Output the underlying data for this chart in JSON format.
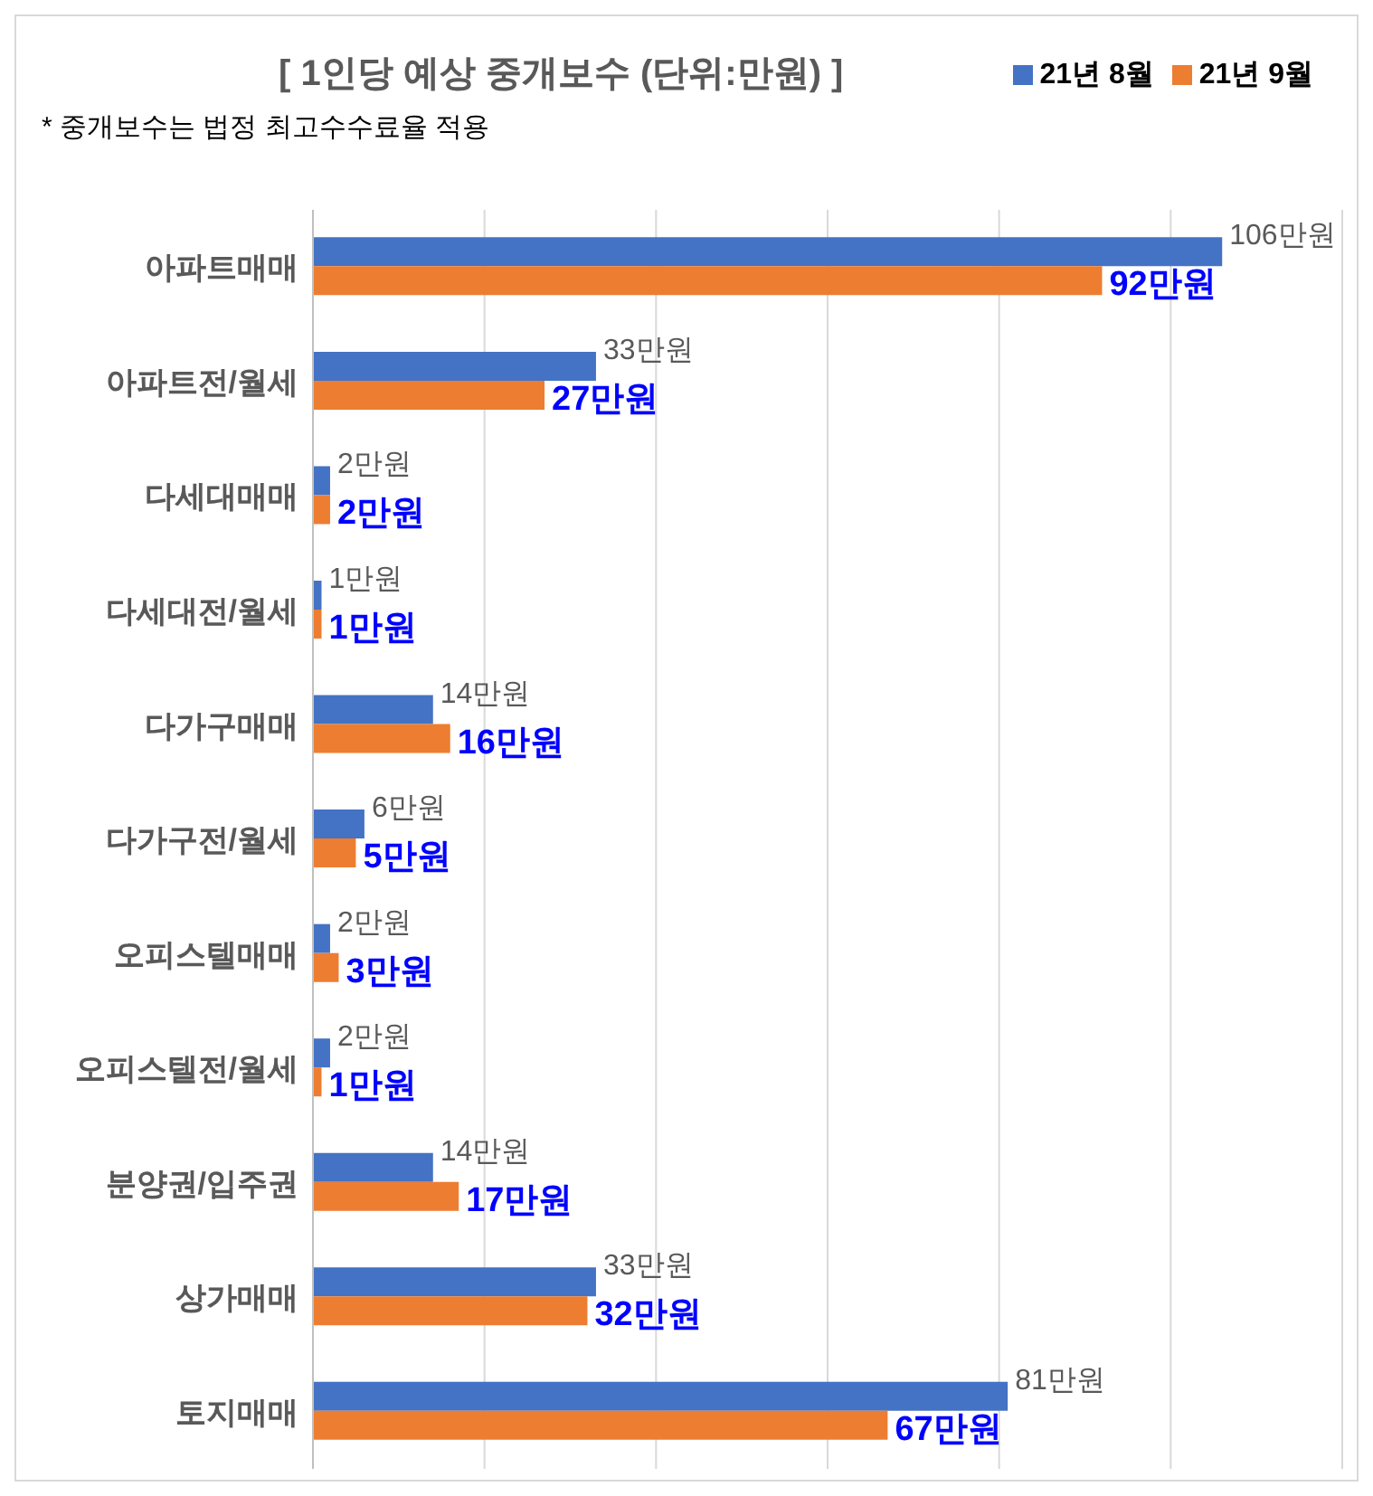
{
  "chart_data": {
    "type": "bar",
    "orientation": "horizontal",
    "title": "[ 1인당 예상 중개보수 (단위:만원) ]",
    "annotations": [
      "* 중개보수는 법정 최고수수료율 적용"
    ],
    "categories": [
      "아파트매매",
      "아파트전/월세",
      "다세대매매",
      "다세대전/월세",
      "다가구매매",
      "다가구전/월세",
      "오피스텔매매",
      "오피스텔전/월세",
      "분양권/입주권",
      "상가매매",
      "토지매매"
    ],
    "series": [
      {
        "name": "21년 8월",
        "color": "#4472c4",
        "values": [
          106,
          33,
          2,
          1,
          14,
          6,
          2,
          2,
          14,
          33,
          81
        ],
        "value_labels": [
          "106만원",
          "33만원",
          "2만원",
          "1만원",
          "14만원",
          "6만원",
          "2만원",
          "2만원",
          "14만원",
          "33만원",
          "81만원"
        ]
      },
      {
        "name": "21년 9월",
        "color": "#ed7d31",
        "values": [
          92,
          27,
          2,
          1,
          16,
          5,
          3,
          1,
          17,
          32,
          67
        ],
        "value_labels": [
          "92만원",
          "27만원",
          "2만원",
          "1만원",
          "16만원",
          "5만원",
          "3만원",
          "1만원",
          "17만원",
          "32만원",
          "67만원"
        ]
      }
    ],
    "xlim": [
      0,
      120
    ],
    "xticks": [
      {
        "value": 0,
        "label": null
      },
      {
        "value": 20,
        "label": null
      },
      {
        "value": 40,
        "label": null
      },
      {
        "value": 60,
        "label": null
      },
      {
        "value": 80,
        "label": null
      },
      {
        "value": 100,
        "label": null
      },
      {
        "value": 120,
        "label": null
      }
    ],
    "tick_labels": "y",
    "grid": "x",
    "legend": "top right"
  }
}
